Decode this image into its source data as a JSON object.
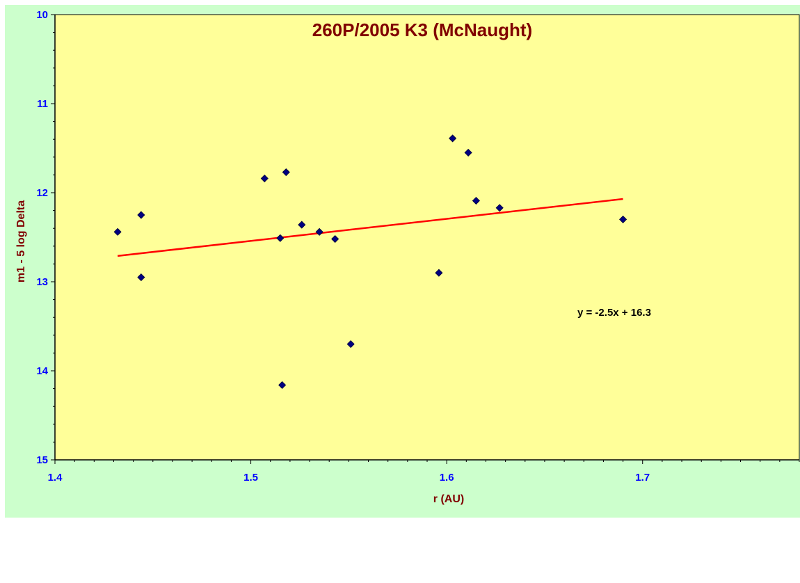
{
  "colors": {
    "chart_background": "#ccffcc",
    "plot_background": "#ffff99",
    "title": "#800000",
    "tick_labels": "#0000ff",
    "points": "#000080",
    "trendline": "#ff0000"
  },
  "chart_data": {
    "type": "scatter",
    "title": "260P/2005 K3 (McNaught)",
    "xlabel": "r (AU)",
    "ylabel": "m1 - 5 log Delta",
    "xlim": [
      1.4,
      1.78
    ],
    "ylim": [
      10,
      15
    ],
    "y_inverted": true,
    "x_ticks": [
      "1.4",
      "1.5",
      "1.6",
      "1.7"
    ],
    "y_ticks": [
      "10",
      "11",
      "12",
      "13",
      "14",
      "15"
    ],
    "grid": false,
    "legend": "none",
    "points": [
      {
        "x": 1.432,
        "y": 12.44
      },
      {
        "x": 1.444,
        "y": 12.25
      },
      {
        "x": 1.444,
        "y": 12.95
      },
      {
        "x": 1.507,
        "y": 11.84
      },
      {
        "x": 1.515,
        "y": 12.51
      },
      {
        "x": 1.516,
        "y": 14.16
      },
      {
        "x": 1.518,
        "y": 11.77
      },
      {
        "x": 1.526,
        "y": 12.36
      },
      {
        "x": 1.535,
        "y": 12.44
      },
      {
        "x": 1.543,
        "y": 12.52
      },
      {
        "x": 1.551,
        "y": 13.7
      },
      {
        "x": 1.596,
        "y": 12.9
      },
      {
        "x": 1.603,
        "y": 11.39
      },
      {
        "x": 1.611,
        "y": 11.55
      },
      {
        "x": 1.615,
        "y": 12.09
      },
      {
        "x": 1.627,
        "y": 12.17
      },
      {
        "x": 1.69,
        "y": 12.3
      }
    ],
    "trendline": {
      "type": "linear",
      "x_start": 1.432,
      "x_end": 1.69,
      "y_start": 12.71,
      "y_end": 12.07,
      "equation": "y = -2.5x + 16.3"
    }
  }
}
